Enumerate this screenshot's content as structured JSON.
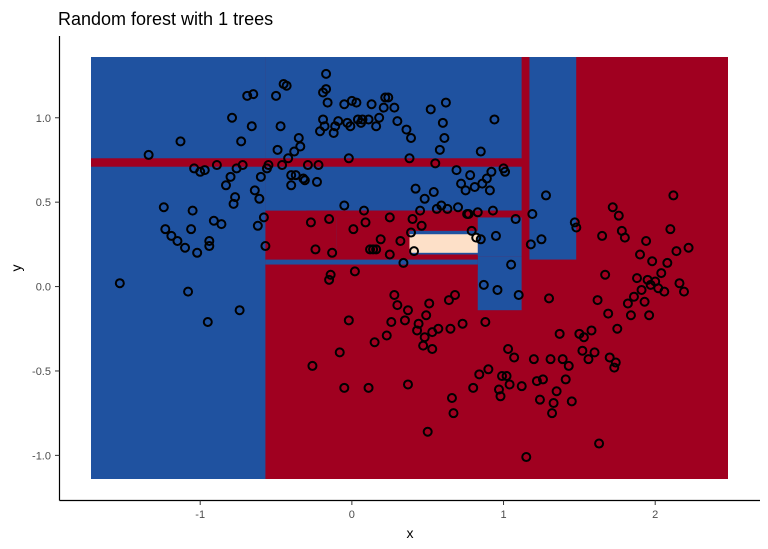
{
  "chart_data": {
    "type": "scatter",
    "title": "Random forest with 1 trees",
    "xlabel": "x",
    "ylabel": "y",
    "xlim": [
      -1.72,
      2.48
    ],
    "ylim": [
      -1.14,
      1.36
    ],
    "x_ticks": [
      -1,
      0,
      1,
      2
    ],
    "x_tick_labels": [
      "-1",
      "0",
      "1",
      "2"
    ],
    "y_ticks": [
      -1.0,
      -0.5,
      0.0,
      0.5,
      1.0
    ],
    "y_tick_labels": [
      "-1.0",
      "-0.5",
      "0.0",
      "0.5",
      "1.0"
    ],
    "grid": false,
    "legend": "none",
    "colors": {
      "class_a": "#1f52a0",
      "class_b": "#a00020",
      "mixed": "#fde0c8",
      "point_stroke": "#000000"
    },
    "regions": [
      {
        "x0": -1.72,
        "x1": 2.48,
        "y0": -1.14,
        "y1": 1.36,
        "fill": "class_b"
      },
      {
        "x0": -1.72,
        "x1": -0.57,
        "y0": -1.14,
        "y1": 1.36,
        "fill": "class_a"
      },
      {
        "x0": -0.57,
        "x1": 1.12,
        "y0": 0.74,
        "y1": 1.36,
        "fill": "class_a"
      },
      {
        "x0": -0.57,
        "x1": 1.12,
        "y0": 0.45,
        "y1": 0.72,
        "fill": "class_a"
      },
      {
        "x0": 1.17,
        "x1": 1.48,
        "y0": 0.16,
        "y1": 1.36,
        "fill": "class_a"
      },
      {
        "x0": -0.1,
        "x1": 1.12,
        "y0": 0.18,
        "y1": 0.41,
        "fill": "class_a"
      },
      {
        "x0": 0.83,
        "x1": 1.12,
        "y0": -0.14,
        "y1": 0.18,
        "fill": "class_a"
      },
      {
        "x0": -0.57,
        "x1": 0.83,
        "y0": 0.13,
        "y1": 0.16,
        "fill": "class_a"
      },
      {
        "x0": -0.57,
        "x1": 0.83,
        "y0": 0.1,
        "y1": 0.13,
        "fill": "class_b"
      },
      {
        "x0": -0.57,
        "x1": 0.83,
        "y0": 0.16,
        "y1": 0.19,
        "fill": "class_b"
      },
      {
        "x0": -0.3,
        "x1": 1.12,
        "y0": 0.41,
        "y1": 0.45,
        "fill": "class_b"
      },
      {
        "x0": -0.1,
        "x1": 0.38,
        "y0": 0.19,
        "y1": 0.41,
        "fill": "class_b"
      },
      {
        "x0": 0.38,
        "x1": 0.83,
        "y0": 0.33,
        "y1": 0.41,
        "fill": "class_b"
      },
      {
        "x0": 0.38,
        "x1": 0.83,
        "y0": 0.2,
        "y1": 0.31,
        "fill": "mixed"
      },
      {
        "x0": -1.72,
        "x1": 1.14,
        "y0": 0.71,
        "y1": 0.76,
        "fill": "class_b"
      },
      {
        "x0": 1.12,
        "x1": 1.17,
        "y0": -0.14,
        "y1": 1.36,
        "fill": "class_b"
      },
      {
        "x0": 1.48,
        "x1": 2.48,
        "y0": -1.14,
        "y1": 1.36,
        "fill": "class_b"
      }
    ],
    "points": [
      [
        -1.53,
        0.02
      ],
      [
        -1.34,
        0.78
      ],
      [
        -1.24,
        0.47
      ],
      [
        -1.23,
        0.34
      ],
      [
        -1.19,
        0.3
      ],
      [
        -1.15,
        0.27
      ],
      [
        -1.13,
        0.86
      ],
      [
        -1.1,
        0.23
      ],
      [
        -1.08,
        -0.03
      ],
      [
        -1.06,
        0.34
      ],
      [
        -1.05,
        0.45
      ],
      [
        -1.04,
        0.7
      ],
      [
        -1.02,
        0.2
      ],
      [
        -1.0,
        0.68
      ],
      [
        -0.97,
        0.69
      ],
      [
        -0.95,
        -0.21
      ],
      [
        -0.94,
        0.27
      ],
      [
        -0.94,
        0.24
      ],
      [
        -0.91,
        0.39
      ],
      [
        -0.89,
        0.72
      ],
      [
        -0.86,
        0.37
      ],
      [
        -0.83,
        0.6
      ],
      [
        -0.8,
        0.65
      ],
      [
        -0.79,
        1.0
      ],
      [
        -0.78,
        0.49
      ],
      [
        -0.77,
        0.53
      ],
      [
        -0.76,
        0.7
      ],
      [
        -0.74,
        -0.14
      ],
      [
        -0.73,
        0.86
      ],
      [
        -0.72,
        0.72
      ],
      [
        -0.69,
        1.13
      ],
      [
        -0.66,
        0.95
      ],
      [
        -0.65,
        1.14
      ],
      [
        -0.64,
        0.57
      ],
      [
        -0.62,
        0.36
      ],
      [
        -0.61,
        0.52
      ],
      [
        -0.6,
        0.65
      ],
      [
        -0.58,
        0.41
      ],
      [
        -0.57,
        0.24
      ],
      [
        -0.56,
        0.7
      ],
      [
        -0.55,
        0.72
      ],
      [
        -0.5,
        1.13
      ],
      [
        -0.49,
        0.81
      ],
      [
        -0.47,
        0.95
      ],
      [
        -0.46,
        0.72
      ],
      [
        -0.45,
        1.2
      ],
      [
        -0.43,
        1.19
      ],
      [
        -0.42,
        0.76
      ],
      [
        -0.4,
        0.6
      ],
      [
        -0.4,
        0.66
      ],
      [
        -0.38,
        0.8
      ],
      [
        -0.37,
        0.66
      ],
      [
        -0.35,
        0.88
      ],
      [
        -0.34,
        0.83
      ],
      [
        -0.32,
        0.64
      ],
      [
        -0.31,
        0.63
      ],
      [
        -0.29,
        0.72
      ],
      [
        -0.27,
        0.38
      ],
      [
        -0.26,
        -0.47
      ],
      [
        -0.24,
        0.22
      ],
      [
        -0.23,
        0.62
      ],
      [
        -0.22,
        0.72
      ],
      [
        -0.21,
        0.92
      ],
      [
        -0.19,
        0.99
      ],
      [
        -0.19,
        1.15
      ],
      [
        -0.18,
        0.95
      ],
      [
        -0.17,
        1.26
      ],
      [
        -0.17,
        1.17
      ],
      [
        -0.16,
        1.09
      ],
      [
        -0.15,
        0.4
      ],
      [
        -0.15,
        0.04
      ],
      [
        -0.14,
        0.07
      ],
      [
        -0.13,
        0.2
      ],
      [
        -0.12,
        0.91
      ],
      [
        -0.11,
        0.95
      ],
      [
        -0.09,
        0.98
      ],
      [
        -0.08,
        -0.39
      ],
      [
        -0.05,
        1.08
      ],
      [
        -0.05,
        -0.6
      ],
      [
        -0.05,
        0.48
      ],
      [
        -0.03,
        0.97
      ],
      [
        -0.02,
        0.76
      ],
      [
        -0.02,
        -0.2
      ],
      [
        -0.01,
        0.95
      ],
      [
        0.0,
        1.1
      ],
      [
        0.01,
        0.34
      ],
      [
        0.02,
        0.09
      ],
      [
        0.03,
        1.09
      ],
      [
        0.04,
        0.99
      ],
      [
        0.06,
        0.97
      ],
      [
        0.07,
        0.99
      ],
      [
        0.08,
        0.45
      ],
      [
        0.09,
        0.38
      ],
      [
        0.11,
        -0.6
      ],
      [
        0.11,
        0.99
      ],
      [
        0.12,
        0.22
      ],
      [
        0.13,
        1.08
      ],
      [
        0.14,
        0.22
      ],
      [
        0.15,
        -0.33
      ],
      [
        0.16,
        0.22
      ],
      [
        0.16,
        0.95
      ],
      [
        0.18,
        1.0
      ],
      [
        0.19,
        0.28
      ],
      [
        0.21,
        1.06
      ],
      [
        0.22,
        1.12
      ],
      [
        0.23,
        -0.29
      ],
      [
        0.24,
        1.12
      ],
      [
        0.25,
        0.19
      ],
      [
        0.25,
        0.41
      ],
      [
        0.26,
        -0.21
      ],
      [
        0.28,
        1.06
      ],
      [
        0.28,
        -0.05
      ],
      [
        0.3,
        -0.11
      ],
      [
        0.3,
        0.98
      ],
      [
        0.32,
        0.27
      ],
      [
        0.34,
        0.14
      ],
      [
        0.35,
        -0.2
      ],
      [
        0.36,
        0.93
      ],
      [
        0.37,
        -0.14
      ],
      [
        0.37,
        -0.58
      ],
      [
        0.38,
        0.76
      ],
      [
        0.39,
        0.88
      ],
      [
        0.39,
        0.32
      ],
      [
        0.4,
        0.4
      ],
      [
        0.41,
        0.21
      ],
      [
        0.42,
        0.58
      ],
      [
        0.43,
        -0.26
      ],
      [
        0.44,
        -0.22
      ],
      [
        0.45,
        0.45
      ],
      [
        0.46,
        0.36
      ],
      [
        0.47,
        -0.35
      ],
      [
        0.48,
        -0.3
      ],
      [
        0.48,
        0.52
      ],
      [
        0.49,
        -0.17
      ],
      [
        0.5,
        -0.86
      ],
      [
        0.51,
        -0.1
      ],
      [
        0.52,
        1.05
      ],
      [
        0.53,
        -0.27
      ],
      [
        0.53,
        -0.37
      ],
      [
        0.54,
        0.56
      ],
      [
        0.55,
        0.73
      ],
      [
        0.56,
        0.46
      ],
      [
        0.57,
        -0.25
      ],
      [
        0.58,
        0.81
      ],
      [
        0.59,
        0.48
      ],
      [
        0.6,
        0.97
      ],
      [
        0.61,
        0.88
      ],
      [
        0.62,
        1.09
      ],
      [
        0.63,
        0.46
      ],
      [
        0.64,
        -0.08
      ],
      [
        0.65,
        -0.25
      ],
      [
        0.66,
        -0.66
      ],
      [
        0.67,
        -0.75
      ],
      [
        0.68,
        -0.05
      ],
      [
        0.69,
        0.69
      ],
      [
        0.7,
        0.47
      ],
      [
        0.72,
        0.61
      ],
      [
        0.73,
        -0.22
      ],
      [
        0.75,
        0.57
      ],
      [
        0.76,
        0.43
      ],
      [
        0.77,
        0.43
      ],
      [
        0.78,
        0.66
      ],
      [
        0.79,
        0.33
      ],
      [
        0.8,
        -0.6
      ],
      [
        0.81,
        0.59
      ],
      [
        0.82,
        0.29
      ],
      [
        0.83,
        0.44
      ],
      [
        0.84,
        -0.52
      ],
      [
        0.85,
        0.8
      ],
      [
        0.85,
        0.28
      ],
      [
        0.86,
        0.61
      ],
      [
        0.87,
        0.01
      ],
      [
        0.88,
        -0.21
      ],
      [
        0.89,
        0.64
      ],
      [
        0.9,
        -0.49
      ],
      [
        0.91,
        0.57
      ],
      [
        0.92,
        0.68
      ],
      [
        0.93,
        0.45
      ],
      [
        0.94,
        0.99
      ],
      [
        0.95,
        0.3
      ],
      [
        0.96,
        -0.02
      ],
      [
        0.97,
        -0.61
      ],
      [
        0.98,
        -0.65
      ],
      [
        0.99,
        -0.53
      ],
      [
        1.0,
        0.7
      ],
      [
        1.01,
        0.68
      ],
      [
        1.02,
        -0.53
      ],
      [
        1.03,
        -0.37
      ],
      [
        1.04,
        -0.58
      ],
      [
        1.05,
        0.13
      ],
      [
        1.07,
        -0.42
      ],
      [
        1.08,
        0.4
      ],
      [
        1.1,
        -0.05
      ],
      [
        1.12,
        -0.59
      ],
      [
        1.15,
        -1.01
      ],
      [
        1.18,
        0.25
      ],
      [
        1.19,
        0.43
      ],
      [
        1.2,
        -0.43
      ],
      [
        1.22,
        -0.56
      ],
      [
        1.24,
        -0.67
      ],
      [
        1.25,
        0.28
      ],
      [
        1.26,
        -0.55
      ],
      [
        1.28,
        0.54
      ],
      [
        1.3,
        -0.07
      ],
      [
        1.31,
        -0.43
      ],
      [
        1.32,
        -0.75
      ],
      [
        1.33,
        -0.69
      ],
      [
        1.35,
        -0.62
      ],
      [
        1.37,
        -0.28
      ],
      [
        1.39,
        -0.43
      ],
      [
        1.41,
        -0.55
      ],
      [
        1.43,
        -0.47
      ],
      [
        1.45,
        -0.68
      ],
      [
        1.47,
        0.38
      ],
      [
        1.48,
        0.35
      ],
      [
        1.5,
        -0.28
      ],
      [
        1.52,
        -0.38
      ],
      [
        1.53,
        -0.3
      ],
      [
        1.56,
        -0.43
      ],
      [
        1.58,
        -0.26
      ],
      [
        1.6,
        -0.39
      ],
      [
        1.62,
        -0.08
      ],
      [
        1.63,
        -0.93
      ],
      [
        1.65,
        0.3
      ],
      [
        1.67,
        0.07
      ],
      [
        1.69,
        -0.16
      ],
      [
        1.7,
        -0.42
      ],
      [
        1.72,
        0.47
      ],
      [
        1.73,
        -0.48
      ],
      [
        1.74,
        -0.45
      ],
      [
        1.75,
        -0.25
      ],
      [
        1.76,
        0.42
      ],
      [
        1.78,
        0.33
      ],
      [
        1.8,
        0.29
      ],
      [
        1.82,
        -0.1
      ],
      [
        1.84,
        -0.17
      ],
      [
        1.86,
        -0.06
      ],
      [
        1.88,
        0.05
      ],
      [
        1.9,
        0.19
      ],
      [
        1.91,
        -0.02
      ],
      [
        1.93,
        -0.09
      ],
      [
        1.94,
        0.27
      ],
      [
        1.95,
        0.04
      ],
      [
        1.96,
        -0.17
      ],
      [
        1.97,
        0.01
      ],
      [
        1.98,
        0.15
      ],
      [
        2.0,
        0.03
      ],
      [
        2.02,
        -0.01
      ],
      [
        2.04,
        0.08
      ],
      [
        2.06,
        -0.03
      ],
      [
        2.08,
        0.14
      ],
      [
        2.1,
        0.34
      ],
      [
        2.12,
        0.54
      ],
      [
        2.14,
        0.21
      ],
      [
        2.16,
        0.02
      ],
      [
        2.19,
        -0.03
      ],
      [
        2.22,
        0.23
      ]
    ]
  }
}
